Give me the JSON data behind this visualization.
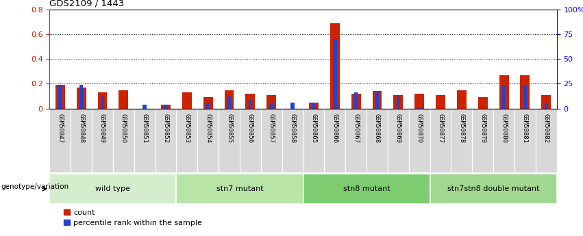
{
  "title": "GDS2109 / 1443",
  "samples": [
    "GSM50847",
    "GSM50848",
    "GSM50849",
    "GSM50850",
    "GSM50851",
    "GSM50852",
    "GSM50853",
    "GSM50854",
    "GSM50855",
    "GSM50856",
    "GSM50857",
    "GSM50858",
    "GSM50865",
    "GSM50866",
    "GSM50867",
    "GSM50868",
    "GSM50869",
    "GSM50870",
    "GSM50877",
    "GSM50878",
    "GSM50879",
    "GSM50880",
    "GSM50881",
    "GSM50882"
  ],
  "red_values": [
    0.19,
    0.17,
    0.13,
    0.15,
    0.0,
    0.03,
    0.13,
    0.09,
    0.15,
    0.12,
    0.11,
    0.0,
    0.05,
    0.69,
    0.12,
    0.14,
    0.11,
    0.12,
    0.11,
    0.15,
    0.09,
    0.27,
    0.27,
    0.11
  ],
  "blue_values": [
    0.19,
    0.19,
    0.1,
    0.0,
    0.03,
    0.03,
    0.0,
    0.05,
    0.1,
    0.07,
    0.05,
    0.05,
    0.05,
    0.56,
    0.13,
    0.13,
    0.1,
    0.01,
    0.0,
    0.0,
    0.0,
    0.19,
    0.19,
    0.05
  ],
  "groups": [
    {
      "label": "wild type",
      "start": 0,
      "end": 6,
      "color": "#d4edcc"
    },
    {
      "label": "stn7 mutant",
      "start": 6,
      "end": 12,
      "color": "#b8e4a8"
    },
    {
      "label": "stn8 mutant",
      "start": 12,
      "end": 18,
      "color": "#7ecc70"
    },
    {
      "label": "stn7stn8 double mutant",
      "start": 18,
      "end": 24,
      "color": "#a0d890"
    }
  ],
  "ylim_left": [
    0.0,
    0.8
  ],
  "ylim_right": [
    0.0,
    100.0
  ],
  "yticks_left": [
    0.0,
    0.2,
    0.4,
    0.6,
    0.8
  ],
  "ytick_labels_left": [
    "0",
    "0.2",
    "0.4",
    "0.6",
    "0.8"
  ],
  "yticks_right": [
    0,
    25,
    50,
    75,
    100
  ],
  "ytick_labels_right": [
    "0",
    "25",
    "50",
    "75",
    "100%"
  ],
  "red_color": "#cc2200",
  "blue_color": "#2244cc",
  "label_count": "count",
  "label_percentile": "percentile rank within the sample",
  "genotype_label": "genotype/variation"
}
